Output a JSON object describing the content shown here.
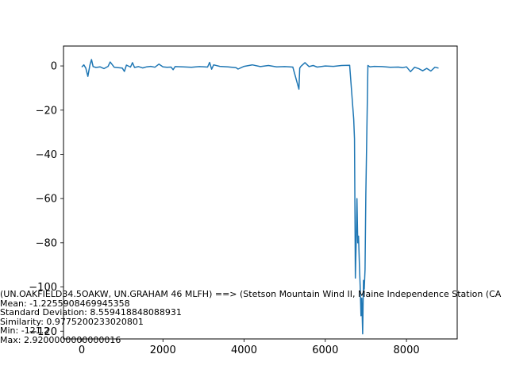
{
  "chart_data": {
    "type": "line",
    "title": "",
    "xlabel": "",
    "ylabel": "",
    "xlim": [
      -450,
      9250
    ],
    "ylim": [
      -123.5,
      9
    ],
    "xticks": [
      0,
      2000,
      4000,
      6000,
      8000
    ],
    "xtick_labels": [
      "0",
      "2000",
      "4000",
      "6000",
      "8000"
    ],
    "yticks": [
      0,
      -20,
      -40,
      -60,
      -80,
      -100,
      -120
    ],
    "ytick_labels": [
      "0",
      "−20",
      "−40",
      "−60",
      "−80",
      "−100",
      "−120"
    ],
    "grid": false,
    "legend": "none",
    "series": [
      {
        "color": "#1f77b4",
        "x": [
          0,
          50,
          100,
          150,
          200,
          240,
          280,
          350,
          450,
          550,
          650,
          700,
          800,
          900,
          1000,
          1050,
          1100,
          1200,
          1250,
          1300,
          1400,
          1500,
          1600,
          1700,
          1800,
          1900,
          2000,
          2100,
          2200,
          2250,
          2300,
          2500,
          2700,
          2900,
          3100,
          3150,
          3200,
          3250,
          3400,
          3600,
          3800,
          3850,
          4000,
          4200,
          4400,
          4600,
          4800,
          5000,
          5200,
          5350,
          5370,
          5400,
          5500,
          5600,
          5700,
          5800,
          6000,
          6200,
          6400,
          6600,
          6700,
          6720,
          6740,
          6760,
          6780,
          6800,
          6820,
          6840,
          6860,
          6880,
          6900,
          6920,
          6940,
          6960,
          6980,
          7000,
          7050,
          7100,
          7200,
          7400,
          7600,
          7800,
          7900,
          8000,
          8100,
          8200,
          8300,
          8400,
          8500,
          8600,
          8700,
          8790
        ],
        "y": [
          -0.5,
          0.5,
          -1.0,
          -4.7,
          0.3,
          2.9,
          -0.3,
          -0.7,
          -0.4,
          -1.2,
          -0.2,
          1.8,
          -0.6,
          -0.8,
          -1.0,
          -2.5,
          0.4,
          -0.5,
          1.5,
          -0.7,
          -0.3,
          -0.9,
          -0.4,
          -0.2,
          -0.6,
          0.8,
          -0.4,
          -0.6,
          -0.5,
          -1.7,
          -0.3,
          -0.4,
          -0.6,
          -0.3,
          -0.5,
          1.6,
          -1.5,
          0.5,
          -0.2,
          -0.4,
          -0.8,
          -1.4,
          -0.2,
          0.5,
          -0.3,
          0.2,
          -0.4,
          -0.3,
          -0.5,
          -10.5,
          -1.0,
          -0.2,
          1.5,
          -0.3,
          0.2,
          -0.5,
          0.0,
          -0.2,
          0.2,
          0.3,
          -24.0,
          -33.0,
          -96.0,
          -80.0,
          -60.0,
          -80.0,
          -77.0,
          -90.0,
          -100.0,
          -113.0,
          -105.0,
          -121.2,
          -97.0,
          -101.0,
          -92.0,
          -58.0,
          0.2,
          -0.4,
          -0.2,
          -0.3,
          -0.6,
          -0.5,
          -0.8,
          -0.4,
          -2.6,
          -0.6,
          -1.2,
          -2.2,
          -1.1,
          -2.3,
          -0.6,
          -1.0
        ]
      }
    ],
    "annotations": [
      "(UN.OAKFIELD34.5OAKW, UN.GRAHAM  46  MLFH) ==> (Stetson Mountain Wind II, Maine Independence Station (CA",
      "Mean: -1.2255908469945358",
      "Standard Deviation: 8.559418848088931",
      "Similarity: 0.9775200233020801",
      "Min: -121.2",
      "Max: 2.9200000000000016"
    ]
  }
}
